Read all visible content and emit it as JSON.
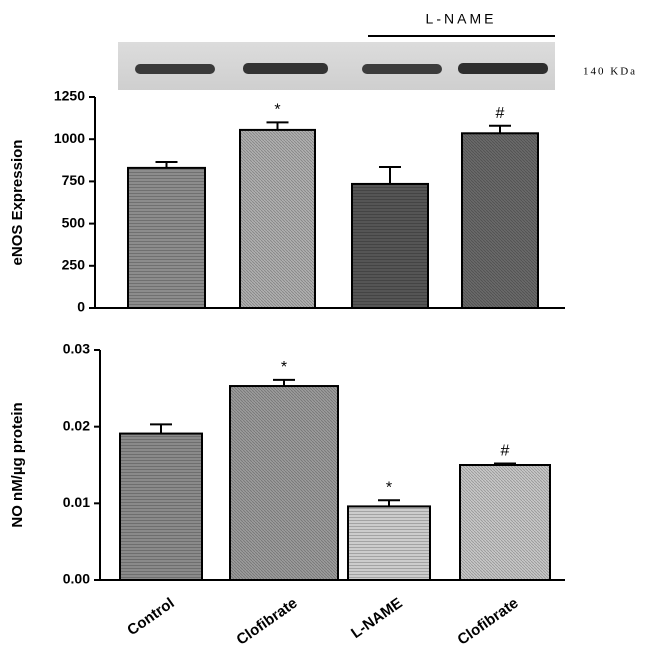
{
  "chart_data": [
    {
      "type": "bar",
      "ylabel": "eNOS Expression",
      "blot_label": "140 KDa",
      "group_label": "L-NAME",
      "values": [
        830,
        1055,
        735,
        1035
      ],
      "errors": [
        35,
        45,
        100,
        45
      ],
      "markers": [
        null,
        "*",
        null,
        "#"
      ],
      "colors": [
        "#8c8c8c",
        "#b0b0b0",
        "#555555",
        "#6a6a6a"
      ],
      "ylim": [
        0,
        1250
      ],
      "yticks": [
        0,
        250,
        500,
        750,
        1000,
        1250
      ]
    },
    {
      "type": "bar",
      "ylabel": "NO nM/µg protein",
      "categories": [
        "Control",
        "Clofibrate",
        "L-NAME",
        "Clofibrate"
      ],
      "values": [
        0.0191,
        0.0253,
        0.0096,
        0.015
      ],
      "errors": [
        0.0012,
        0.0008,
        0.0008,
        0.0002
      ],
      "markers": [
        null,
        "*",
        "*",
        "#"
      ],
      "colors": [
        "#8a8a8a",
        "#9c9c9c",
        "#cccccc",
        "#c8c8c8"
      ],
      "ylim": [
        0,
        0.03
      ],
      "yticks": [
        {
          "value": 0,
          "label": "0.00"
        },
        {
          "value": 0.01,
          "label": "0.01"
        },
        {
          "value": 0.02,
          "label": "0.02"
        },
        {
          "value": 0.03,
          "label": "0.03"
        }
      ]
    }
  ]
}
